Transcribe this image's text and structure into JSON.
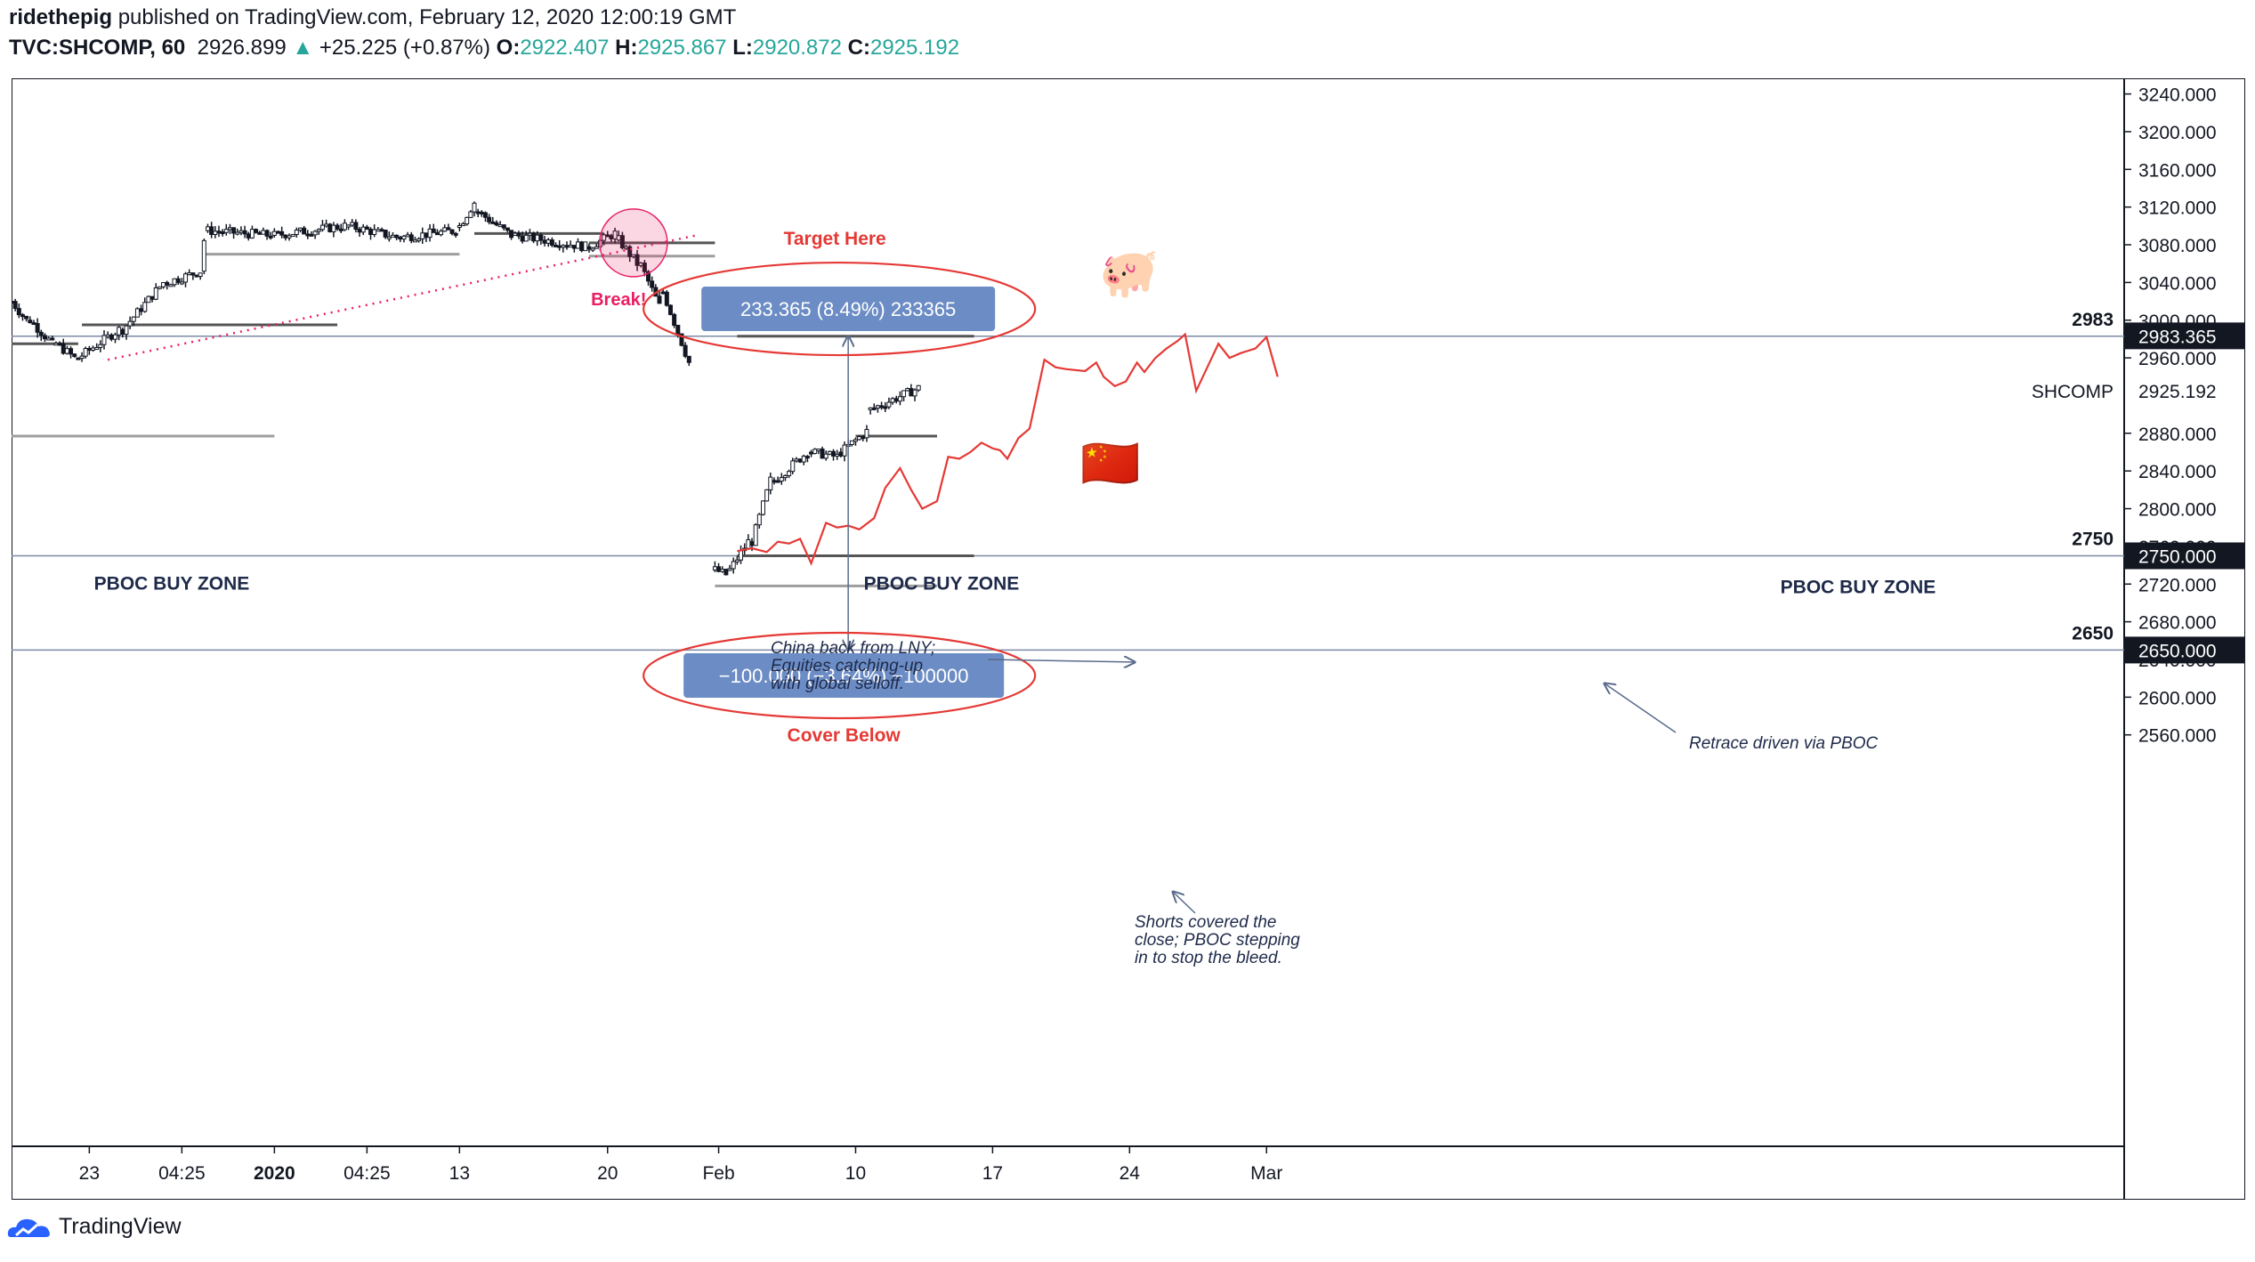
{
  "header": {
    "author": "ridethepig",
    "published": "published on TradingView.com, February 12, 2020 12:00:19 GMT",
    "symbol": "TVC:SHCOMP, 60",
    "last": "2926.899",
    "arrow": "▲",
    "change": "+25.225 (+0.87%)",
    "o_label": "O:",
    "o_value": "2922.407",
    "h_label": "H:",
    "h_value": "2925.867",
    "l_label": "L:",
    "l_value": "2920.872",
    "c_label": "C:",
    "c_value": "2925.192"
  },
  "footer": {
    "brand": "TradingView"
  },
  "colors": {
    "up": "#131722",
    "down": "#131722",
    "accent": "#e53935",
    "pink": "#e91e63",
    "axis_tag": "#131722",
    "measure_box": "#6b8cc4"
  },
  "chart_data": {
    "type": "candlestick",
    "price_axis": {
      "ylim": [
        2530,
        3255
      ],
      "ticks": [
        3240,
        3200,
        3160,
        3120,
        3080,
        3040,
        3000,
        2960,
        2920,
        2880,
        2840,
        2800,
        2760,
        2720,
        2680,
        2640,
        2600,
        2560
      ],
      "tick_labels": [
        "3240.000",
        "3200.000",
        "3160.000",
        "3120.000",
        "3080.000",
        "3040.000",
        "3000.000",
        "2960.000",
        "",
        "2880.000",
        "2840.000",
        "2800.000",
        "2760.000",
        "2720.000",
        "2680.000",
        "2640.000",
        "2600.000",
        "2560.000"
      ]
    },
    "time_axis": {
      "ticks": [
        {
          "label": "23",
          "bar": 21,
          "bold": false
        },
        {
          "label": "04:25",
          "bar": 46,
          "bold": false
        },
        {
          "label": "2020",
          "bar": 71,
          "bold": true
        },
        {
          "label": "04:25",
          "bar": 96,
          "bold": false
        },
        {
          "label": "13",
          "bar": 121,
          "bold": false
        },
        {
          "label": "20",
          "bar": 161,
          "bold": false
        },
        {
          "label": "Feb",
          "bar": 191,
          "bold": false
        },
        {
          "label": "10",
          "bar": 228,
          "bold": false
        },
        {
          "label": "17",
          "bar": 265,
          "bold": false
        },
        {
          "label": "24",
          "bar": 302,
          "bold": false
        },
        {
          "label": "Mar",
          "bar": 339,
          "bold": false
        }
      ]
    },
    "price_tags": [
      {
        "label": "2983.365",
        "value": 2983.365,
        "style": "dark"
      },
      {
        "label": "2925.192",
        "value": 2925.192,
        "style": "light",
        "name": "SHCOMP"
      },
      {
        "label": "2750.000",
        "value": 2750,
        "style": "dark"
      },
      {
        "label": "2650.000",
        "value": 2650,
        "style": "dark"
      }
    ],
    "level_lines": [
      {
        "label": "2983",
        "value": 2983
      },
      {
        "label": "2750",
        "value": 2750
      },
      {
        "label": "2650",
        "value": 2650
      }
    ],
    "zone_labels": [
      "PBOC BUY ZONE",
      "PBOC BUY ZONE",
      "PBOC BUY ZONE"
    ],
    "annotations": {
      "target": "Target Here",
      "cover": "Cover Below",
      "break": "Break!",
      "measure_up": "233.365 (8.49%) 233365",
      "measure_down": "−100.000 (−3.64%) −100000",
      "note1": [
        "China back from LNY;",
        "Equities catching-up",
        "with global selloff."
      ],
      "note2": [
        "Shorts covered the",
        "close; PBOC stepping",
        "in to stop the bleed."
      ],
      "note3": "Retrace driven via PBOC"
    },
    "icons": [
      "pig-icon",
      "china-flag-icon"
    ],
    "segments": [
      {
        "start": 0,
        "from": 3020,
        "to": 3000,
        "n": 5
      },
      {
        "start": 5,
        "from": 3000,
        "to": 2975,
        "n": 7
      },
      {
        "start": 12,
        "from": 2975,
        "to": 2960,
        "n": 6
      },
      {
        "start": 18,
        "from": 2960,
        "to": 2990,
        "n": 12
      },
      {
        "start": 30,
        "from": 2990,
        "to": 3040,
        "n": 12
      },
      {
        "start": 42,
        "from": 3040,
        "to": 3052,
        "n": 10
      },
      {
        "start": 52,
        "from": 3052,
        "to": 3085,
        "n": 1
      },
      {
        "start": 53,
        "from": 3095,
        "to": 3090,
        "n": 18
      },
      {
        "start": 71,
        "from": 3090,
        "to": 3100,
        "n": 20
      },
      {
        "start": 91,
        "from": 3100,
        "to": 3088,
        "n": 14
      },
      {
        "start": 105,
        "from": 3088,
        "to": 3095,
        "n": 16
      },
      {
        "start": 121,
        "from": 3100,
        "to": 3125,
        "n": 5
      },
      {
        "start": 126,
        "from": 3115,
        "to": 3090,
        "n": 10
      },
      {
        "start": 136,
        "from": 3090,
        "to": 3078,
        "n": 20
      },
      {
        "start": 156,
        "from": 3078,
        "to": 3092,
        "n": 8
      },
      {
        "start": 164,
        "from": 3085,
        "to": 3060,
        "n": 6
      },
      {
        "start": 170,
        "from": 3058,
        "to": 3015,
        "n": 6
      },
      {
        "start": 176,
        "from": 3030,
        "to": 2955,
        "n": 8
      },
      {
        "start": 190,
        "from": 2735,
        "to": 2730,
        "n": 4
      },
      {
        "start": 194,
        "from": 2735,
        "to": 2765,
        "n": 6
      },
      {
        "start": 200,
        "from": 2765,
        "to": 2830,
        "n": 6
      },
      {
        "start": 206,
        "from": 2830,
        "to": 2860,
        "n": 10
      },
      {
        "start": 216,
        "from": 2860,
        "to": 2855,
        "n": 8
      },
      {
        "start": 224,
        "from": 2860,
        "to": 2882,
        "n": 8
      },
      {
        "start": 232,
        "from": 2905,
        "to": 2928,
        "n": 14
      }
    ],
    "projection": {
      "name": "",
      "points": [
        [
          196,
          2755
        ],
        [
          200,
          2758
        ],
        [
          204,
          2754
        ],
        [
          207,
          2765
        ],
        [
          210,
          2763
        ],
        [
          213,
          2768
        ],
        [
          216,
          2742
        ],
        [
          220,
          2785
        ],
        [
          223,
          2780
        ],
        [
          226,
          2782
        ],
        [
          229,
          2778
        ],
        [
          233,
          2790
        ],
        [
          236,
          2822
        ],
        [
          240,
          2843
        ],
        [
          243,
          2820
        ],
        [
          246,
          2800
        ],
        [
          250,
          2808
        ],
        [
          253,
          2855
        ],
        [
          256,
          2853
        ],
        [
          259,
          2860
        ],
        [
          262,
          2870
        ],
        [
          265,
          2864
        ],
        [
          267,
          2862
        ],
        [
          269,
          2853
        ],
        [
          272,
          2875
        ],
        [
          275,
          2885
        ],
        [
          279,
          2958
        ],
        [
          282,
          2950
        ],
        [
          285,
          2948
        ],
        [
          290,
          2946
        ],
        [
          293,
          2955
        ],
        [
          295,
          2940
        ],
        [
          298,
          2930
        ],
        [
          301,
          2935
        ],
        [
          304,
          2955
        ],
        [
          306,
          2945
        ],
        [
          309,
          2960
        ],
        [
          312,
          2970
        ],
        [
          315,
          2978
        ],
        [
          317,
          2985
        ],
        [
          320,
          2925
        ],
        [
          323,
          2950
        ],
        [
          326,
          2975
        ],
        [
          329,
          2960
        ],
        [
          332,
          2965
        ],
        [
          336,
          2970
        ],
        [
          339,
          2982
        ],
        [
          342,
          2940
        ]
      ]
    }
  }
}
